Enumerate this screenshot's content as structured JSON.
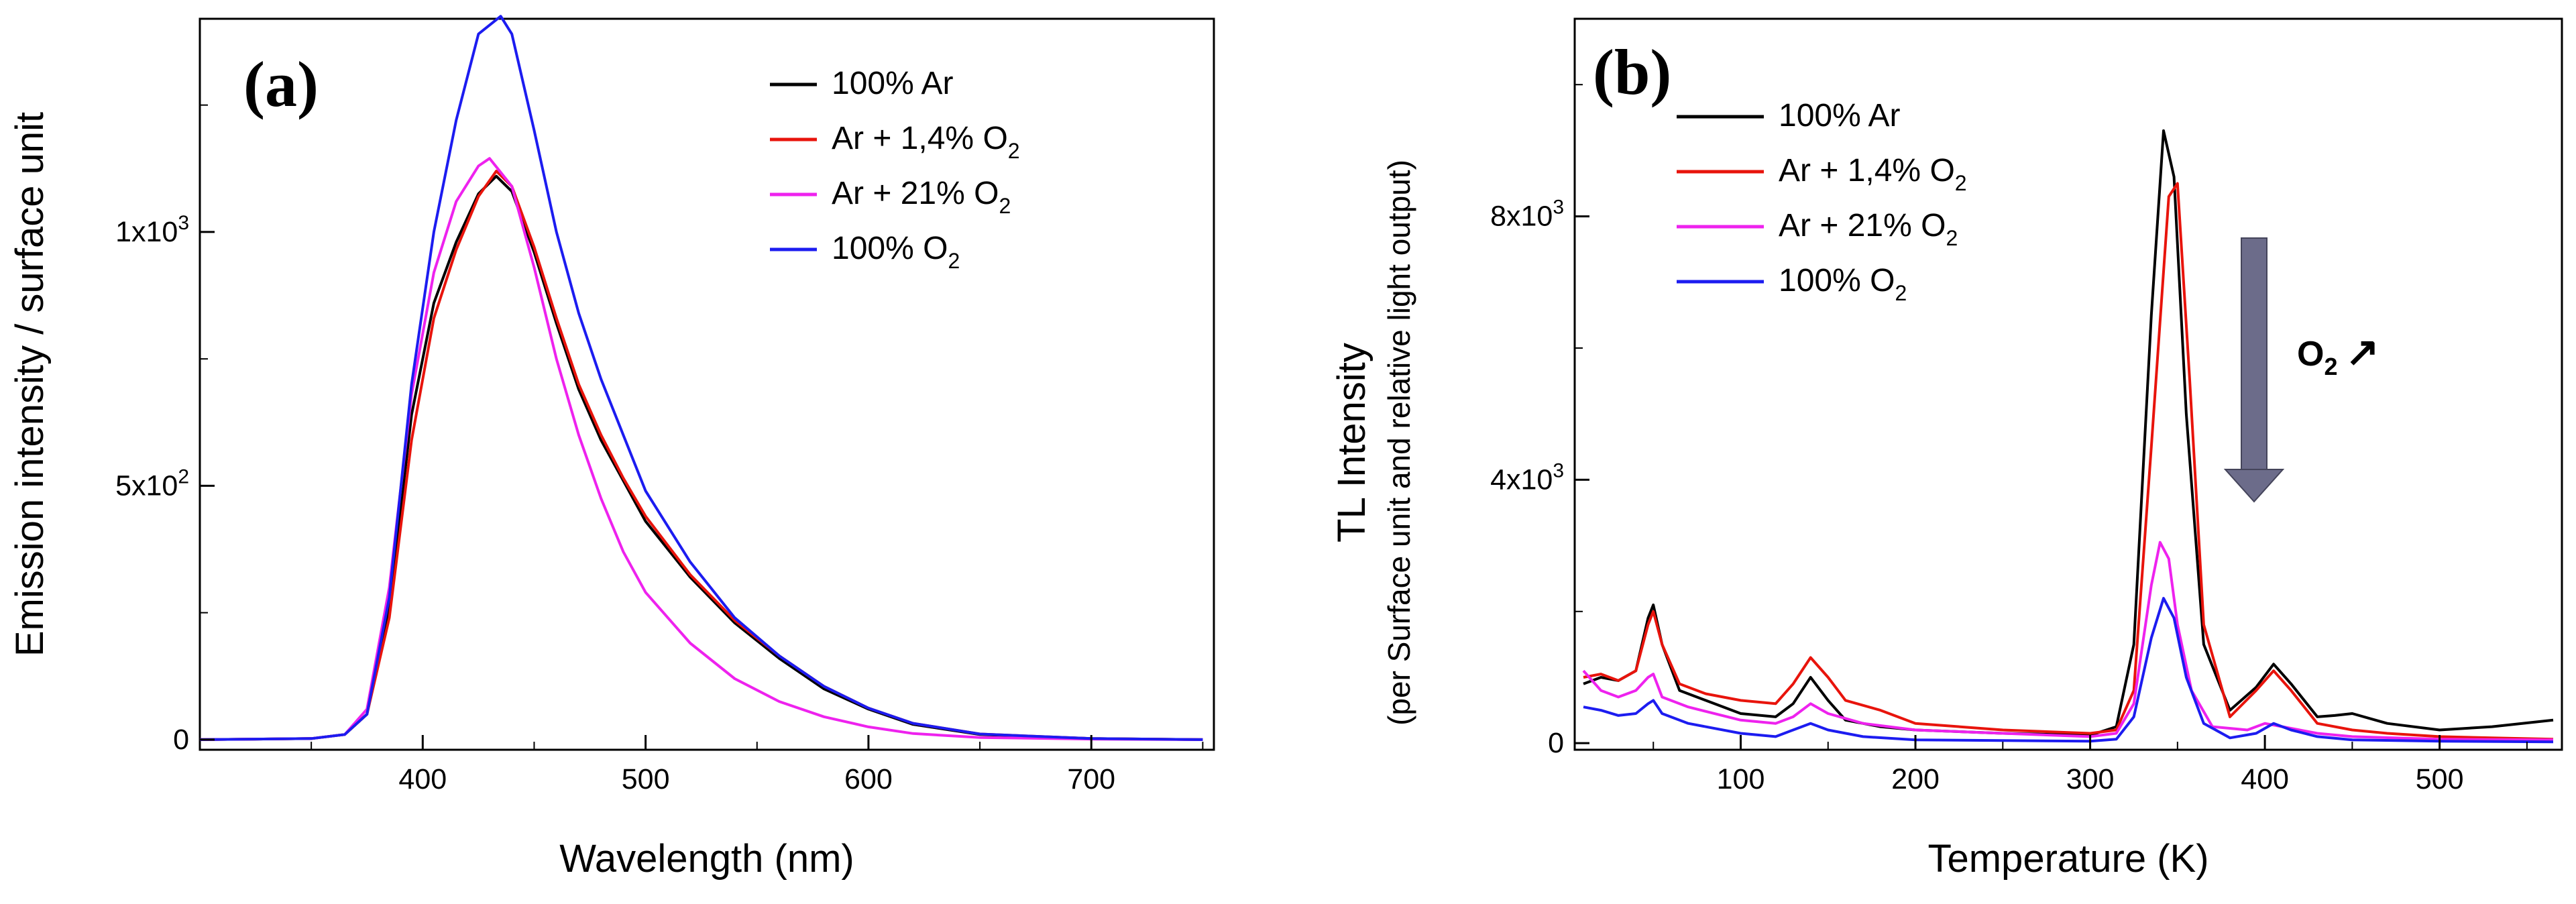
{
  "chart_data": [
    {
      "panel": "(a)",
      "type": "line",
      "xlabel": "Wavelength (nm)",
      "ylabel": "Emission intensity / surface unit",
      "xlim": [
        300,
        755
      ],
      "ylim": [
        -20,
        1420
      ],
      "xticks": [
        {
          "value": 400,
          "label": "400"
        },
        {
          "value": 500,
          "label": "500"
        },
        {
          "value": 600,
          "label": "600"
        },
        {
          "value": 700,
          "label": "700"
        }
      ],
      "yticks": [
        {
          "value": 0,
          "label": "0"
        },
        {
          "value": 500,
          "label": "5x10",
          "sup": "2"
        },
        {
          "value": 1000,
          "label": "1x10",
          "sup": "3"
        }
      ],
      "legend_position": "top-right",
      "series": [
        {
          "name": "100% Ar",
          "main": "100% Ar",
          "sub": "",
          "color": "#000000",
          "x": [
            300,
            350,
            365,
            375,
            385,
            395,
            405,
            415,
            425,
            433,
            440,
            450,
            460,
            470,
            480,
            490,
            500,
            520,
            540,
            560,
            580,
            600,
            620,
            650,
            700,
            750
          ],
          "y": [
            0,
            2,
            10,
            50,
            260,
            640,
            860,
            980,
            1075,
            1110,
            1080,
            960,
            820,
            690,
            590,
            510,
            430,
            320,
            230,
            160,
            100,
            60,
            30,
            10,
            2,
            0
          ]
        },
        {
          "name": "Ar + 1,4% O2",
          "main": "Ar + 1,4% O",
          "sub": "2",
          "color": "#e8140c",
          "x": [
            300,
            350,
            365,
            375,
            385,
            395,
            405,
            415,
            425,
            433,
            440,
            450,
            460,
            470,
            480,
            490,
            500,
            520,
            540,
            560,
            580,
            600,
            620,
            650,
            700,
            750
          ],
          "y": [
            0,
            2,
            10,
            50,
            240,
            590,
            830,
            965,
            1070,
            1120,
            1090,
            970,
            830,
            700,
            600,
            515,
            440,
            325,
            235,
            165,
            105,
            62,
            32,
            11,
            2,
            0
          ]
        },
        {
          "name": "Ar + 21% O2",
          "main": "Ar + 21% O",
          "sub": "2",
          "color": "#ee22ee",
          "x": [
            300,
            350,
            365,
            375,
            385,
            395,
            405,
            415,
            425,
            430,
            440,
            450,
            460,
            470,
            480,
            490,
            500,
            520,
            540,
            560,
            580,
            600,
            620,
            650,
            700,
            750
          ],
          "y": [
            0,
            2,
            10,
            60,
            300,
            680,
            920,
            1060,
            1130,
            1145,
            1090,
            930,
            750,
            600,
            475,
            370,
            290,
            190,
            120,
            75,
            45,
            25,
            12,
            4,
            1,
            0
          ]
        },
        {
          "name": "100% O2",
          "main": "100% O",
          "sub": "2",
          "color": "#1c1cf0",
          "x": [
            300,
            350,
            365,
            375,
            385,
            395,
            405,
            415,
            425,
            435,
            440,
            450,
            460,
            470,
            480,
            490,
            500,
            520,
            540,
            560,
            580,
            600,
            620,
            650,
            700,
            750
          ],
          "y": [
            0,
            2,
            10,
            50,
            280,
            700,
            1000,
            1220,
            1390,
            1425,
            1390,
            1200,
            1000,
            840,
            710,
            600,
            490,
            350,
            240,
            165,
            105,
            62,
            32,
            11,
            2,
            0
          ]
        }
      ]
    },
    {
      "panel": "(b)",
      "type": "line",
      "xlabel": "Temperature (K)",
      "ylabel": "TL Intensity",
      "ylabel2": "(per Surface unit and relative light output)",
      "xlim": [
        5,
        570
      ],
      "ylim": [
        -100,
        11000
      ],
      "xticks": [
        {
          "value": 100,
          "label": "100"
        },
        {
          "value": 200,
          "label": "200"
        },
        {
          "value": 300,
          "label": "300"
        },
        {
          "value": 400,
          "label": "400"
        },
        {
          "value": 500,
          "label": "500"
        }
      ],
      "yticks": [
        {
          "value": 0,
          "label": "0"
        },
        {
          "value": 4000,
          "label": "4x10",
          "sup": "3"
        },
        {
          "value": 8000,
          "label": "8x10",
          "sup": "3"
        }
      ],
      "legend_position": "top-left",
      "annotation": {
        "main": "O",
        "sub": "2",
        "arrow": "↗"
      },
      "series": [
        {
          "name": "100% Ar",
          "main": "100% Ar",
          "sub": "",
          "color": "#000000",
          "x": [
            10,
            20,
            30,
            40,
            47,
            50,
            55,
            65,
            80,
            100,
            120,
            130,
            140,
            150,
            160,
            180,
            200,
            250,
            300,
            315,
            325,
            335,
            342,
            348,
            355,
            365,
            380,
            395,
            405,
            415,
            430,
            440,
            450,
            470,
            500,
            530,
            565
          ],
          "y": [
            900,
            1000,
            950,
            1100,
            1900,
            2100,
            1500,
            800,
            650,
            450,
            400,
            600,
            1000,
            650,
            350,
            250,
            200,
            150,
            120,
            250,
            1500,
            6500,
            9300,
            8600,
            5000,
            1500,
            500,
            850,
            1200,
            900,
            400,
            420,
            450,
            300,
            200,
            250,
            350
          ]
        },
        {
          "name": "Ar + 1,4% O2",
          "main": "Ar + 1,4% O",
          "sub": "2",
          "color": "#e8140c",
          "x": [
            10,
            20,
            30,
            40,
            47,
            50,
            55,
            65,
            80,
            100,
            120,
            130,
            140,
            150,
            160,
            180,
            200,
            250,
            300,
            315,
            325,
            335,
            345,
            350,
            357,
            365,
            380,
            395,
            405,
            415,
            430,
            450,
            470,
            500,
            530,
            565
          ],
          "y": [
            1000,
            1050,
            950,
            1100,
            1800,
            2000,
            1500,
            900,
            750,
            650,
            600,
            900,
            1300,
            1000,
            650,
            500,
            300,
            200,
            150,
            200,
            800,
            4500,
            8300,
            8500,
            5500,
            1800,
            400,
            800,
            1100,
            800,
            300,
            200,
            150,
            100,
            80,
            60
          ]
        },
        {
          "name": "Ar + 21% O2",
          "main": "Ar + 21% O",
          "sub": "2",
          "color": "#ee22ee",
          "x": [
            10,
            20,
            30,
            40,
            47,
            50,
            55,
            70,
            100,
            120,
            130,
            140,
            150,
            170,
            200,
            250,
            300,
            315,
            325,
            335,
            340,
            345,
            350,
            358,
            370,
            390,
            400,
            410,
            430,
            450,
            500,
            565
          ],
          "y": [
            1100,
            800,
            700,
            800,
            1000,
            1050,
            700,
            550,
            350,
            300,
            400,
            600,
            450,
            300,
            200,
            150,
            100,
            150,
            600,
            2400,
            3050,
            2800,
            1800,
            800,
            250,
            200,
            300,
            250,
            150,
            100,
            60,
            50
          ]
        },
        {
          "name": "100% O2",
          "main": "100% O",
          "sub": "2",
          "color": "#1c1cf0",
          "x": [
            10,
            20,
            30,
            40,
            47,
            50,
            55,
            70,
            100,
            120,
            130,
            140,
            150,
            170,
            200,
            250,
            300,
            315,
            325,
            335,
            342,
            348,
            355,
            365,
            380,
            395,
            405,
            415,
            430,
            450,
            500,
            565
          ],
          "y": [
            550,
            500,
            420,
            450,
            600,
            650,
            450,
            300,
            150,
            100,
            200,
            300,
            200,
            100,
            50,
            40,
            30,
            60,
            400,
            1600,
            2200,
            1900,
            1000,
            300,
            80,
            150,
            300,
            200,
            100,
            50,
            30,
            20
          ]
        }
      ]
    }
  ]
}
